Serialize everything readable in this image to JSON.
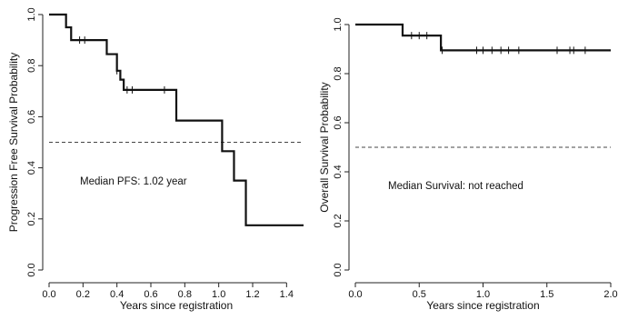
{
  "colors": {
    "curve": "#111111",
    "reference": "#444444"
  },
  "chart_data": [
    {
      "type": "line",
      "subtype": "kaplan-meier-step",
      "ylabel": "Progression Free Survival Probability",
      "xlabel": "Years since registration",
      "xlim": [
        0,
        1.5
      ],
      "ylim": [
        0,
        1.0
      ],
      "xticks": [
        "0.0",
        "0.2",
        "0.4",
        "0.6",
        "0.8",
        "1.0",
        "1.2",
        "1.4"
      ],
      "yticks": [
        "0.0",
        "0.2",
        "0.4",
        "0.6",
        "0.8",
        "1.0"
      ],
      "annotation": "Median PFS: 1.02 year",
      "reference_line_y": 0.5,
      "series": [
        {
          "x": [
            0,
            0.1,
            0.13,
            0.34,
            0.4,
            0.42,
            0.44,
            0.75,
            1.02,
            1.09,
            1.16,
            1.5
          ],
          "y": [
            1.0,
            0.95,
            0.9,
            0.845,
            0.78,
            0.745,
            0.705,
            0.585,
            0.465,
            0.35,
            0.175,
            0.175
          ],
          "censor_x": [
            0.18,
            0.21,
            0.4,
            0.46,
            0.49,
            0.68
          ]
        }
      ]
    },
    {
      "type": "line",
      "subtype": "kaplan-meier-step",
      "ylabel": "Overall Survival Probability",
      "xlabel": "Years since registration",
      "xlim": [
        0,
        2.0
      ],
      "ylim": [
        0,
        1.0
      ],
      "xticks": [
        "0.0",
        "0.5",
        "1.0",
        "1.5",
        "2.0"
      ],
      "yticks": [
        "0.0",
        "0.2",
        "0.4",
        "0.6",
        "0.8",
        "1.0"
      ],
      "annotation": "Median Survival: not reached",
      "reference_line_y": 0.5,
      "series": [
        {
          "x": [
            0,
            0.37,
            0.67,
            2.0
          ],
          "y": [
            1.0,
            0.955,
            0.895,
            0.895
          ],
          "censor_x": [
            0.44,
            0.5,
            0.56,
            0.68,
            0.95,
            1.0,
            1.07,
            1.14,
            1.2,
            1.28,
            1.58,
            1.68,
            1.71,
            1.8
          ]
        }
      ]
    }
  ]
}
